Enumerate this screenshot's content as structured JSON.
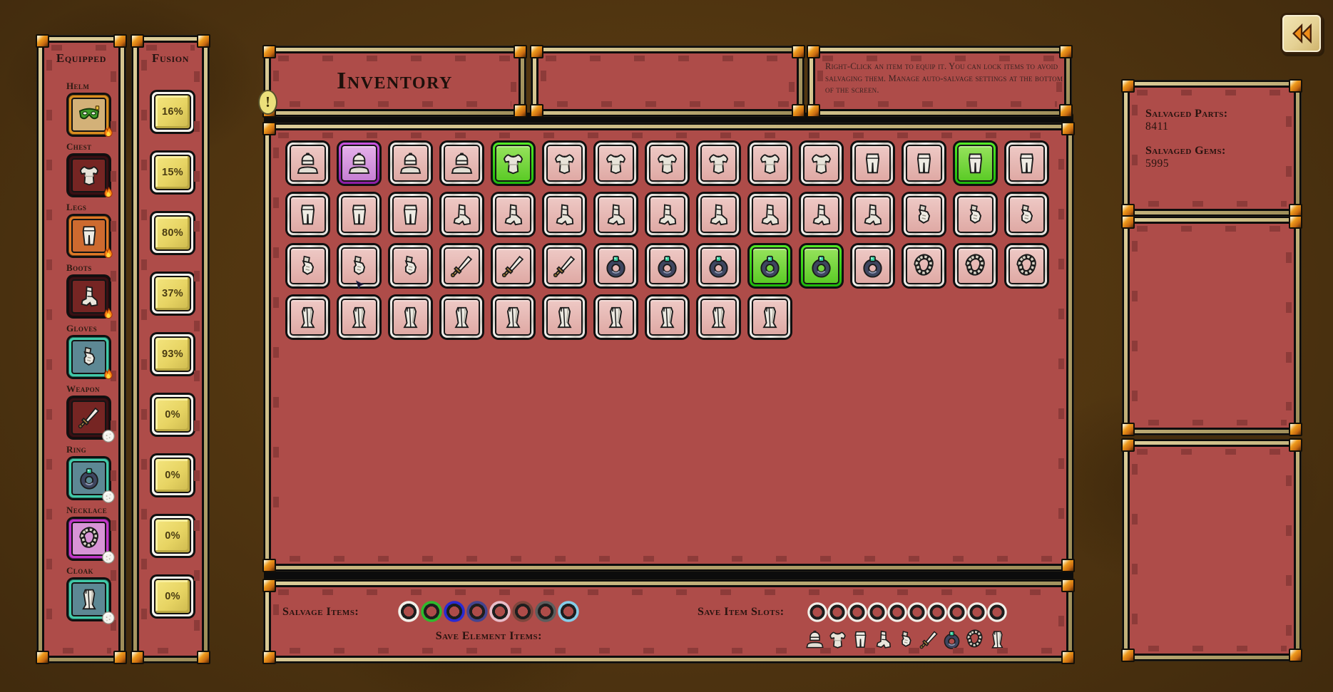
{
  "equipped_panel": {
    "title": "Equipped",
    "slots": [
      {
        "label": "Helm",
        "icon": "mask-icon",
        "emblem": "fire-icon",
        "frame_color": "#d98d1f",
        "bg_color": "#d3b178"
      },
      {
        "label": "Chest",
        "icon": "chest-icon",
        "emblem": "fire-icon",
        "frame_color": "#381014",
        "bg_color": "#762523"
      },
      {
        "label": "Legs",
        "icon": "legs-icon",
        "emblem": "fire-icon",
        "frame_color": "#de7826",
        "bg_color": "#cd6a2f"
      },
      {
        "label": "Boots",
        "icon": "boots-icon",
        "emblem": "fire-icon",
        "frame_color": "#381014",
        "bg_color": "#762523"
      },
      {
        "label": "Gloves",
        "icon": "gloves-icon",
        "emblem": "fire-icon",
        "frame_color": "#41c9a9",
        "bg_color": "#5d8894"
      },
      {
        "label": "Weapon",
        "icon": "sword-icon",
        "emblem": "dice-icon",
        "frame_color": "#381014",
        "bg_color": "#762523"
      },
      {
        "label": "Ring",
        "icon": "ring-icon",
        "emblem": "dice-icon",
        "frame_color": "#41c9a9",
        "bg_color": "#5d8894"
      },
      {
        "label": "Necklace",
        "icon": "necklace-icon",
        "emblem": "dice-icon",
        "frame_color": "#c136c9",
        "bg_color": "#d894d6"
      },
      {
        "label": "Cloak",
        "icon": "cloak-icon",
        "emblem": "dice-icon",
        "frame_color": "#41c9a9",
        "bg_color": "#5d8894"
      }
    ]
  },
  "fusion_panel": {
    "title": "Fusion",
    "values": [
      "16%",
      "15%",
      "80%",
      "37%",
      "93%",
      "0%",
      "0%",
      "0%",
      "0%"
    ]
  },
  "header": {
    "title": "Inventory",
    "alert_glyph": "!",
    "help_text": "Right-Click an item to equip it. You can lock items to avoid salvaging them. Manage auto-salvage settings at the bottom of the screen."
  },
  "inventory_grid": {
    "rarity_colors": {
      "common": "#f2f0ec",
      "rare": "#2ed21c",
      "epic": "#b13fd2"
    },
    "slot_bg_color": "#e5b3ae",
    "rows": [
      [
        {
          "type": "helm"
        },
        {
          "type": "helm",
          "rarity": "epic"
        },
        {
          "type": "helm"
        },
        {
          "type": "helm"
        },
        {
          "type": "chest",
          "rarity": "rare"
        },
        {
          "type": "chest"
        },
        {
          "type": "chest"
        },
        {
          "type": "chest"
        },
        {
          "type": "chest"
        },
        {
          "type": "chest"
        },
        {
          "type": "chest"
        },
        {
          "type": "legs"
        },
        {
          "type": "legs"
        },
        {
          "type": "legs",
          "rarity": "rare"
        },
        {
          "type": "legs"
        }
      ],
      [
        {
          "type": "legs"
        },
        {
          "type": "legs"
        },
        {
          "type": "legs"
        },
        {
          "type": "boots"
        },
        {
          "type": "boots"
        },
        {
          "type": "boots"
        },
        {
          "type": "boots"
        },
        {
          "type": "boots"
        },
        {
          "type": "boots"
        },
        {
          "type": "boots"
        },
        {
          "type": "boots"
        },
        {
          "type": "boots"
        },
        {
          "type": "gloves"
        },
        {
          "type": "gloves"
        },
        {
          "type": "gloves"
        }
      ],
      [
        {
          "type": "gloves"
        },
        {
          "type": "gloves"
        },
        {
          "type": "gloves"
        },
        {
          "type": "sword"
        },
        {
          "type": "sword"
        },
        {
          "type": "sword"
        },
        {
          "type": "ring"
        },
        {
          "type": "ring"
        },
        {
          "type": "ring"
        },
        {
          "type": "ring",
          "rarity": "rare"
        },
        {
          "type": "ring",
          "rarity": "rare"
        },
        {
          "type": "ring"
        },
        {
          "type": "necklace"
        },
        {
          "type": "necklace"
        },
        {
          "type": "necklace"
        }
      ],
      [
        {
          "type": "cloak"
        },
        {
          "type": "cloak"
        },
        {
          "type": "cloak"
        },
        {
          "type": "cloak"
        },
        {
          "type": "cloak"
        },
        {
          "type": "cloak"
        },
        {
          "type": "cloak"
        },
        {
          "type": "cloak"
        },
        {
          "type": "cloak"
        },
        {
          "type": "cloak"
        }
      ]
    ]
  },
  "salvage_bar": {
    "salvage_items_label": "Salvage Items:",
    "salvage_toggle_colors": [
      "#f2efe8",
      "#2fb92c",
      "#2a2ad2",
      "#44448e",
      "#e8bcc8",
      "#7c453c",
      "#5c5c5c",
      "#85cde8"
    ],
    "save_element_label": "Save Element Items:",
    "save_element_toggle_color": "#f2efe8",
    "save_item_slots_label": "Save Item Slots:",
    "save_slot_count": 10,
    "save_slot_ring_color": "#f2efe8",
    "slot_type_icons": [
      "helm-icon",
      "chest-icon",
      "legs-icon",
      "boots-icon",
      "gloves-icon",
      "sword-icon",
      "ring-icon",
      "necklace-icon",
      "cloak-icon"
    ]
  },
  "right_sidebar": {
    "salvaged_parts_label": "Salvaged Parts:",
    "salvaged_parts_value": "8411",
    "salvaged_gems_label": "Salvaged Gems:",
    "salvaged_gems_value": "5995"
  },
  "top_right_button": {
    "icon": "double-left-arrow-icon"
  }
}
